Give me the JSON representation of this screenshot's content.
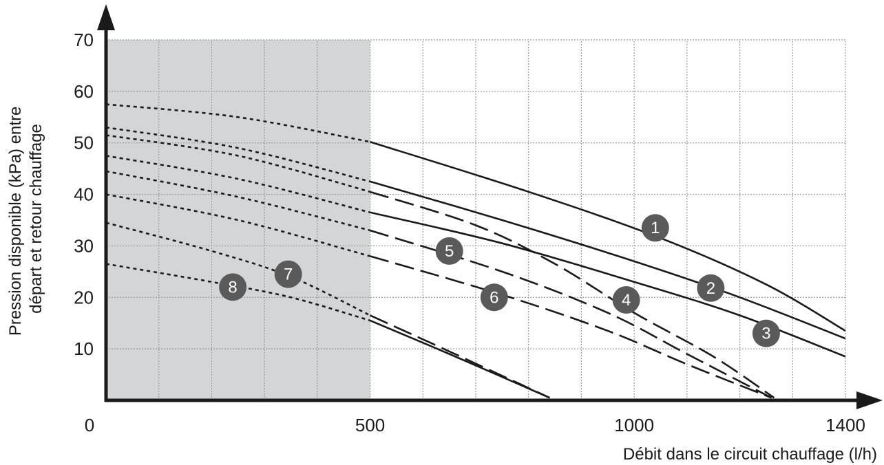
{
  "chart_data": {
    "type": "line",
    "title": "",
    "xlabel": "Débit dans le circuit chauffage (l/h)",
    "ylabel": [
      "Pression disponible (kPa) entre",
      "départ et retour chauffage"
    ],
    "xlim": [
      0,
      1400
    ],
    "ylim": [
      0,
      70
    ],
    "x_ticks": [
      {
        "value": 0,
        "label": "0"
      },
      {
        "value": 500,
        "label": "500"
      },
      {
        "value": 1000,
        "label": "1000"
      },
      {
        "value": 1400,
        "label": "1400"
      }
    ],
    "y_ticks": [
      {
        "value": 10,
        "label": "10"
      },
      {
        "value": 20,
        "label": "20"
      },
      {
        "value": 30,
        "label": "30"
      },
      {
        "value": 40,
        "label": "40"
      },
      {
        "value": 50,
        "label": "50"
      },
      {
        "value": 60,
        "label": "60"
      },
      {
        "value": 70,
        "label": "70"
      }
    ],
    "grid": true,
    "grid_x_step": 100,
    "grid_y_step": 10,
    "shaded_region": {
      "x": [
        0,
        500
      ],
      "y": [
        0,
        70
      ],
      "color": "#d4d5d7"
    },
    "colors": {
      "curve": "#1a1a1a",
      "marker_fill": "#5a5a5a",
      "grid": "#9a9a9a",
      "shade": "#d4d5d7"
    },
    "series": [
      {
        "label": "1",
        "segments": [
          {
            "style": "dotted",
            "points": [
              [
                0,
                57.5
              ],
              [
                250,
                55
              ],
              [
                500,
                50.2
              ]
            ]
          },
          {
            "style": "solid",
            "points": [
              [
                500,
                50.2
              ],
              [
                800,
                40.5
              ],
              [
                1050,
                31.5
              ],
              [
                1250,
                22.5
              ],
              [
                1400,
                13.5
              ]
            ]
          }
        ],
        "marker": [
          1040,
          33.5
        ]
      },
      {
        "label": "2",
        "segments": [
          {
            "style": "dotted",
            "points": [
              [
                0,
                53
              ],
              [
                250,
                49
              ],
              [
                500,
                42.5
              ]
            ]
          },
          {
            "style": "solid",
            "points": [
              [
                500,
                42.5
              ],
              [
                750,
                35
              ],
              [
                1000,
                27
              ],
              [
                1200,
                20
              ],
              [
                1400,
                12
              ]
            ]
          }
        ],
        "marker": [
          1145,
          21.8
        ]
      },
      {
        "label": "3",
        "segments": [
          {
            "style": "dotted",
            "points": [
              [
                0,
                47.5
              ],
              [
                250,
                43
              ],
              [
                500,
                36.5
              ]
            ]
          },
          {
            "style": "solid",
            "points": [
              [
                500,
                36.5
              ],
              [
                750,
                30.5
              ],
              [
                1000,
                23
              ],
              [
                1200,
                16.5
              ],
              [
                1400,
                8.5
              ]
            ]
          }
        ],
        "marker": [
          1250,
          13
        ]
      },
      {
        "label": "4",
        "segments": [
          {
            "style": "dotted",
            "points": [
              [
                0,
                51.5
              ],
              [
                250,
                47.5
              ],
              [
                500,
                40.5
              ]
            ]
          },
          {
            "style": "dashed",
            "points": [
              [
                500,
                40.5
              ],
              [
                700,
                34
              ],
              [
                850,
                26.5
              ],
              [
                1000,
                17
              ],
              [
                1150,
                8.5
              ],
              [
                1265,
                0.5
              ]
            ]
          }
        ],
        "marker": [
          985,
          19.5
        ]
      },
      {
        "label": "5",
        "segments": [
          {
            "style": "dotted",
            "points": [
              [
                0,
                44.5
              ],
              [
                250,
                39.5
              ],
              [
                500,
                33
              ]
            ]
          },
          {
            "style": "dashed",
            "points": [
              [
                500,
                33
              ],
              [
                750,
                25
              ],
              [
                950,
                17
              ],
              [
                1100,
                9
              ],
              [
                1260,
                0.5
              ]
            ]
          }
        ],
        "marker": [
          650,
          29
        ]
      },
      {
        "label": "6",
        "segments": [
          {
            "style": "dotted",
            "points": [
              [
                0,
                40
              ],
              [
                250,
                35
              ],
              [
                500,
                28
              ]
            ]
          },
          {
            "style": "dashed",
            "points": [
              [
                500,
                28
              ],
              [
                750,
                20.5
              ],
              [
                950,
                13.5
              ],
              [
                1100,
                7
              ],
              [
                1260,
                0.5
              ]
            ]
          }
        ],
        "marker": [
          735,
          20
        ]
      },
      {
        "label": "7",
        "segments": [
          {
            "style": "dotted",
            "points": [
              [
                0,
                34.5
              ],
              [
                200,
                29
              ],
              [
                350,
                24
              ],
              [
                500,
                16.5
              ]
            ]
          },
          {
            "style": "dashed",
            "points": [
              [
                500,
                16.5
              ],
              [
                650,
                9.5
              ],
              [
                840,
                0.5
              ]
            ]
          }
        ],
        "marker": [
          345,
          24.5
        ]
      },
      {
        "label": "8",
        "segments": [
          {
            "style": "dotted",
            "points": [
              [
                0,
                26.5
              ],
              [
                200,
                23
              ],
              [
                350,
                20
              ],
              [
                500,
                15.5
              ]
            ]
          },
          {
            "style": "solid",
            "points": [
              [
                500,
                15.5
              ],
              [
                650,
                9
              ],
              [
                840,
                0.5
              ]
            ]
          }
        ],
        "marker": [
          240,
          22
        ]
      }
    ]
  }
}
